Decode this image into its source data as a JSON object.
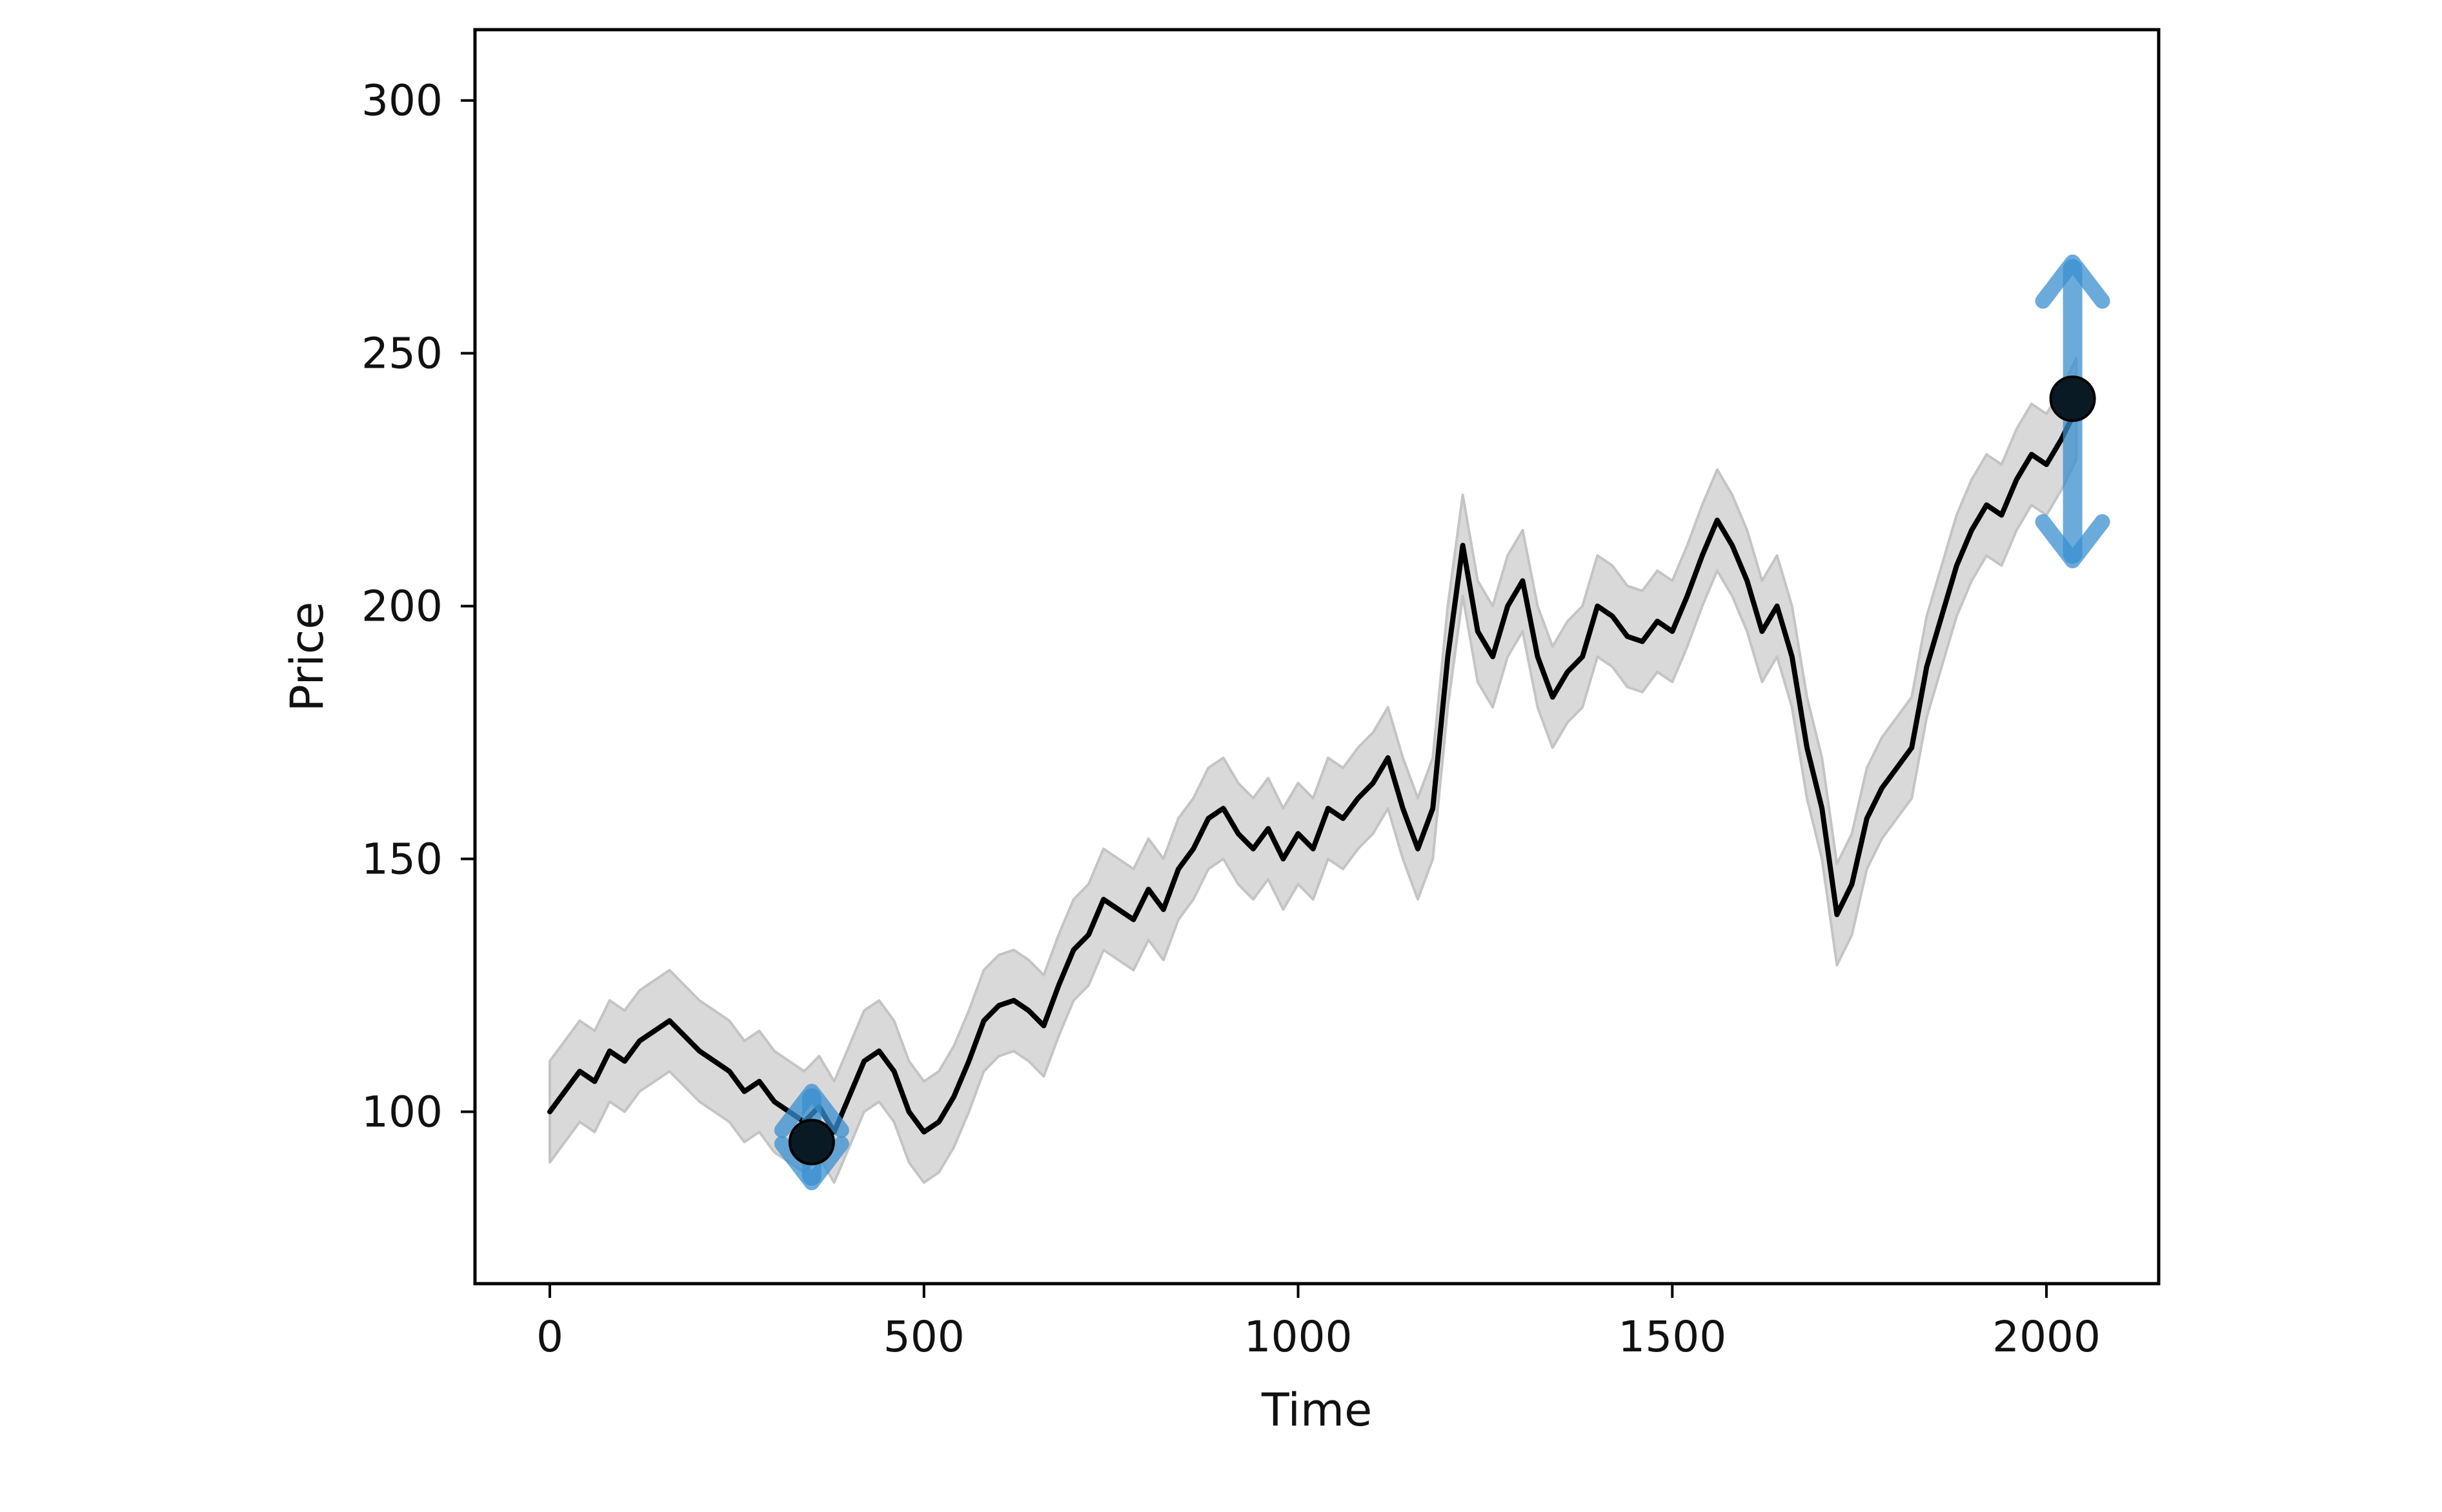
{
  "chart_data": {
    "type": "line",
    "title": "",
    "xlabel": "Time",
    "ylabel": "Price",
    "xlim": [
      -100,
      2150
    ],
    "ylim": [
      66,
      314
    ],
    "x_ticks": [
      0,
      500,
      1000,
      1500,
      2000
    ],
    "y_ticks": [
      100,
      150,
      200,
      250,
      300
    ],
    "x_tick_labels": [
      "0",
      "500",
      "1000",
      "1500",
      "2000"
    ],
    "y_tick_labels": [
      "100",
      "150",
      "200",
      "250",
      "300"
    ],
    "grid": false,
    "legend": "none",
    "colors": {
      "line": "#000000",
      "band_fill": "#d9d9d9",
      "band_edge": "#c4c4c4",
      "arrow": "#3a8fd0",
      "marker": "#0a1a24"
    },
    "series": [
      {
        "values_x": [
          0,
          20,
          40,
          60,
          80,
          100,
          120,
          140,
          160,
          180,
          200,
          220,
          240,
          260,
          280,
          300,
          320,
          340,
          360,
          380,
          400,
          420,
          440,
          460,
          480,
          500,
          520,
          540,
          560,
          580,
          600,
          620,
          640,
          660,
          680,
          700,
          720,
          740,
          760,
          780,
          800,
          820,
          840,
          860,
          880,
          900,
          920,
          940,
          960,
          980,
          1000,
          1020,
          1040,
          1060,
          1080,
          1100,
          1120,
          1140,
          1160,
          1180,
          1200,
          1220,
          1240,
          1260,
          1280,
          1300,
          1320,
          1340,
          1360,
          1380,
          1400,
          1420,
          1440,
          1460,
          1480,
          1500,
          1520,
          1540,
          1560,
          1580,
          1600,
          1620,
          1640,
          1660,
          1680,
          1700,
          1720,
          1740,
          1760,
          1780,
          1800,
          1820,
          1840,
          1860,
          1880,
          1900,
          1920,
          1940,
          1960,
          1980,
          2000,
          2020,
          2040
        ],
        "values_y": [
          100,
          104,
          108,
          106,
          112,
          110,
          114,
          116,
          118,
          115,
          112,
          110,
          108,
          104,
          106,
          102,
          100,
          98,
          101,
          96,
          103,
          110,
          112,
          108,
          100,
          96,
          98,
          103,
          110,
          118,
          121,
          122,
          120,
          117,
          125,
          132,
          135,
          142,
          140,
          138,
          144,
          140,
          148,
          152,
          158,
          160,
          155,
          152,
          156,
          150,
          155,
          152,
          160,
          158,
          162,
          165,
          170,
          160,
          152,
          160,
          190,
          212,
          195,
          190,
          200,
          205,
          190,
          182,
          187,
          190,
          200,
          198,
          194,
          193,
          197,
          195,
          202,
          210,
          217,
          212,
          205,
          195,
          200,
          190,
          172,
          160,
          139,
          145,
          158,
          164,
          168,
          172,
          188,
          198,
          208,
          215,
          220,
          218,
          225,
          230,
          228,
          233,
          239
        ]
      }
    ],
    "band": {
      "upper_offset": 10,
      "lower_offset": 10
    },
    "markers": [
      {
        "x": 350,
        "y": 94
      },
      {
        "x": 2035,
        "y": 241
      }
    ],
    "arrows": [
      {
        "x": 350,
        "y_start": 94,
        "y_end": 86
      },
      {
        "x": 350,
        "y_start": 94,
        "y_end": 104
      },
      {
        "x": 2035,
        "y_start": 241,
        "y_end": 268
      },
      {
        "x": 2035,
        "y_start": 241,
        "y_end": 209
      }
    ]
  }
}
